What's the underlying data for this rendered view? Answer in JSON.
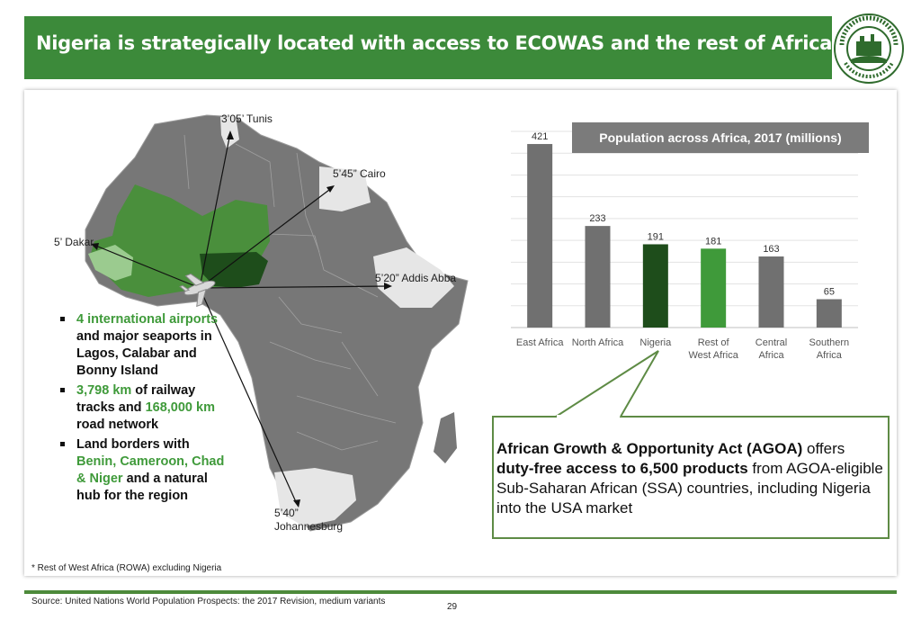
{
  "header": {
    "title": "Nigeria is strategically located with access to ECOWAS and the rest of Africa",
    "logo_text_top": "NIGERIAN INVESTMENT PROMOTION",
    "logo_text_bottom": "COMMISSION"
  },
  "map": {
    "labels": {
      "tunis": "3’05’ Tunis",
      "cairo": "5’45” Cairo",
      "dakar": "5’ Dakar",
      "addis": "5’20” Addis Abba",
      "johannesburg_1": "5’40”",
      "johannesburg_2": "Johannesburg"
    }
  },
  "bullets": [
    {
      "hl": "4 international airports",
      "rest": " and major seaports in Lagos, Calabar and Bonny Island"
    },
    {
      "hl": "3,798 km",
      "mid": " of railway tracks and ",
      "hl2": "168,000 km",
      "rest": " road network"
    },
    {
      "pre": "Land borders with ",
      "hl": "Benin, Cameroon, Chad & Niger",
      "rest": " and a natural hub for the region"
    }
  ],
  "chart_data": {
    "type": "bar",
    "title": "Population across Africa, 2017 (millions)",
    "categories": [
      "East Africa",
      "North Africa",
      "Nigeria",
      "Rest of West Africa",
      "Central Africa",
      "Southern Africa"
    ],
    "category_lines": [
      [
        "East Africa"
      ],
      [
        "North Africa"
      ],
      [
        "Nigeria"
      ],
      [
        "Rest of",
        "West Africa"
      ],
      [
        "Central",
        "Africa"
      ],
      [
        "Southern",
        "Africa"
      ]
    ],
    "values": [
      421,
      233,
      191,
      181,
      163,
      65
    ],
    "colors": [
      "#707070",
      "#707070",
      "#1e4d1b",
      "#3f9a3a",
      "#707070",
      "#707070"
    ],
    "ylim": [
      0,
      450
    ],
    "grid": true,
    "legend": "none"
  },
  "callout": {
    "bold1": "African Growth & Opportunity Act (AGOA)",
    "text1": " offers ",
    "bold2": "duty-free access to 6,500 products",
    "text2": " from AGOA-eligible Sub-Saharan African (SSA) countries, including Nigeria into the USA market"
  },
  "footnote": "* Rest of West Africa (ROWA) excluding Nigeria",
  "source": "Source: United Nations World Population Prospects: the 2017 Revision, medium variants",
  "page_number": "29"
}
